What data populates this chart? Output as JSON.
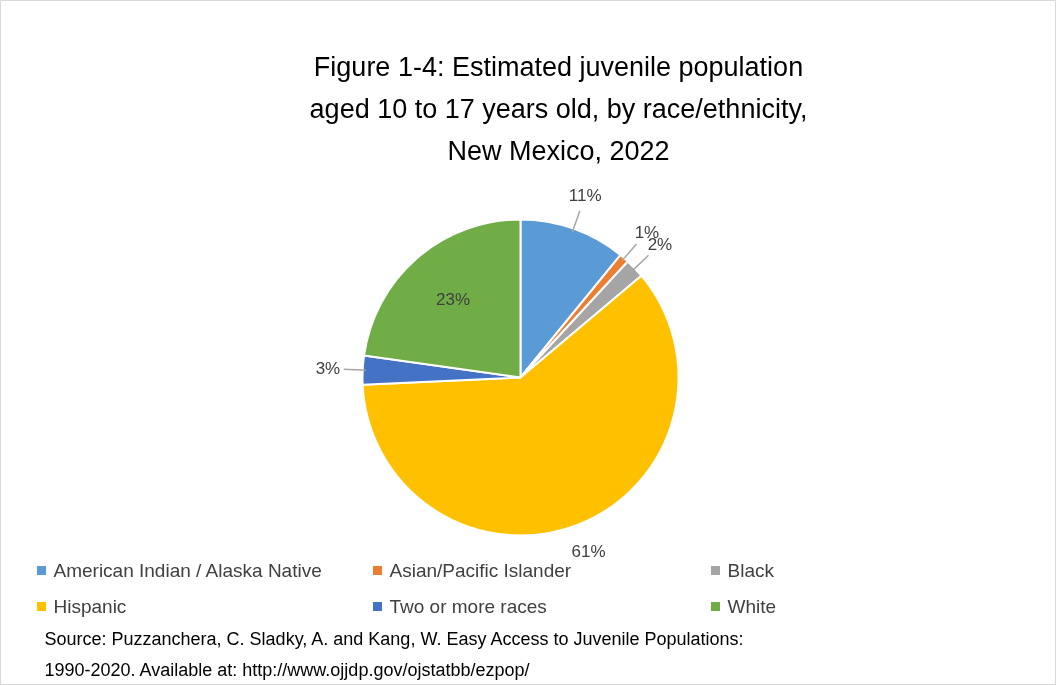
{
  "chart_data": {
    "type": "pie",
    "title": "Figure 1-4: Estimated juvenile population aged 10 to 17 years old, by race/ethnicity, New Mexico, 2022",
    "categories": [
      "American Indian / Alaska Native",
      "Asian/Pacific Islander",
      "Black",
      "Hispanic",
      "Two or more races",
      "White"
    ],
    "values": [
      11,
      1,
      2,
      61,
      3,
      23
    ],
    "colors": [
      "#5b9bd5",
      "#ed7d31",
      "#a5a5a5",
      "#ffc000",
      "#4472c4",
      "#70ad47"
    ],
    "value_labels": [
      "11%",
      "1%",
      "2%",
      "61%",
      "3%",
      "23%"
    ],
    "legend": "bottom",
    "annotations": [
      "Source: Puzzanchera, C. Sladky, A. and Kang, W. Easy Access to Juvenile Populations: 1990-2020. Available at: http://www.ojjdp.gov/ojstatbb/ezpop/"
    ]
  }
}
